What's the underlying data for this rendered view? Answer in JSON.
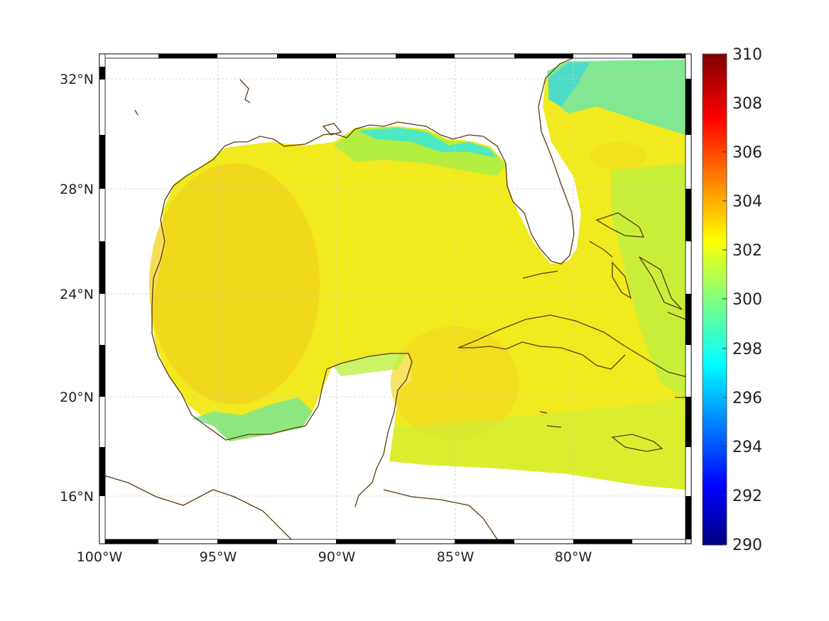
{
  "map": {
    "longitude_labels": [
      "100°W",
      "95°W",
      "90°W",
      "85°W",
      "80°W"
    ],
    "latitude_labels": [
      "32°N",
      "28°N",
      "24°N",
      "20°N",
      "16°N"
    ],
    "grid": "dashed",
    "frame": "black-white-checkered"
  },
  "colorbar": {
    "ticks": [
      "310",
      "308",
      "306",
      "304",
      "302",
      "300",
      "298",
      "296",
      "294",
      "292",
      "290"
    ],
    "range": [
      290,
      310
    ],
    "colormap": "jet",
    "colors": [
      "#000080",
      "#0000ff",
      "#0080ff",
      "#00ffff",
      "#80ff80",
      "#ffff00",
      "#ff8000",
      "#ff0000",
      "#800000"
    ]
  },
  "colors": {
    "coastline": "#5a3a0e",
    "sea_warm": "#f2dc1a",
    "sea_mid": "#e6f020",
    "sea_cool": "#3ee8c8",
    "land": "#ffffff"
  }
}
